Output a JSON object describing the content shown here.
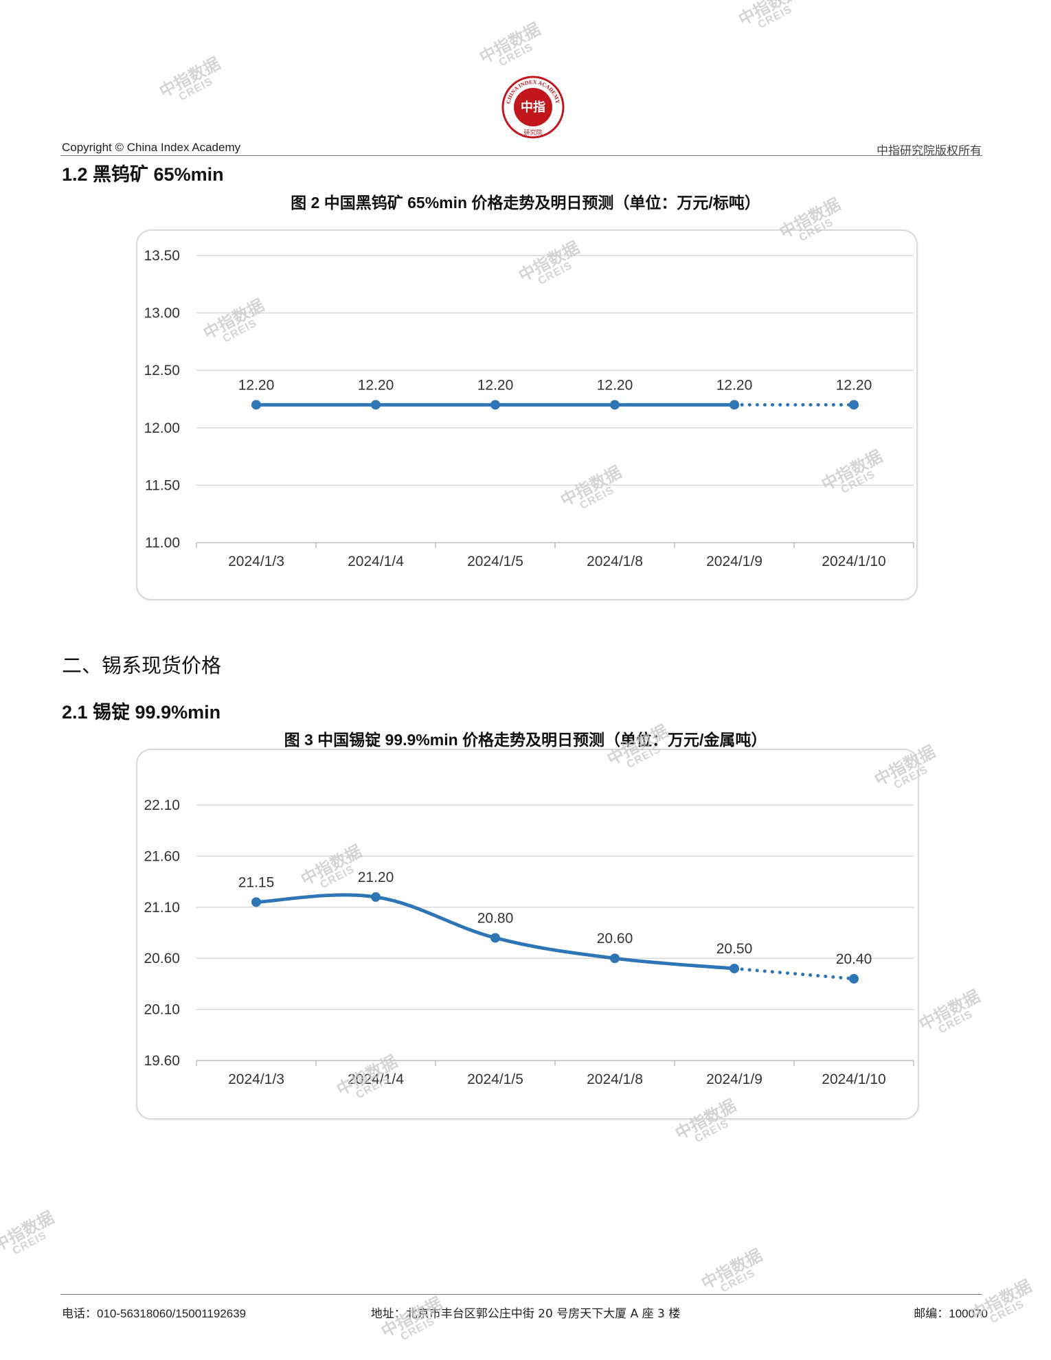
{
  "header": {
    "left": "Copyright © China Index Academy",
    "right": "中指研究院版权所有",
    "logo": {
      "top_text": "CHINA INDEX ACADEMY",
      "center_text": "中指",
      "bottom_text": "研究院",
      "color": "#c0161c"
    }
  },
  "section_1_2": {
    "title": "1.2 黑钨矿 65%min"
  },
  "section_2": {
    "title": "二、锡系现货价格"
  },
  "section_2_1": {
    "title": "2.1 锡锭 99.9%min"
  },
  "chart_data": [
    {
      "id": "fig2",
      "type": "line",
      "title": "图 2 中国黑钨矿 65%min 价格走势及明日预测（单位：万元/标吨）",
      "categories": [
        "2024/1/3",
        "2024/1/4",
        "2024/1/5",
        "2024/1/8",
        "2024/1/9",
        "2024/1/10"
      ],
      "values": [
        12.2,
        12.2,
        12.2,
        12.2,
        12.2,
        12.2
      ],
      "value_labels": [
        "12.20",
        "12.20",
        "12.20",
        "12.20",
        "12.20",
        "12.20"
      ],
      "forecast_from_index": 4,
      "ylim": [
        11.0,
        13.5
      ],
      "yticks": [
        "11.00",
        "11.50",
        "12.00",
        "12.50",
        "13.00",
        "13.50"
      ],
      "smooth": false,
      "grid": true,
      "color": "#2e75b6"
    },
    {
      "id": "fig3",
      "type": "line",
      "title": "图 3 中国锡锭 99.9%min 价格走势及明日预测（单位：万元/金属吨）",
      "categories": [
        "2024/1/3",
        "2024/1/4",
        "2024/1/5",
        "2024/1/8",
        "2024/1/9",
        "2024/1/10"
      ],
      "values": [
        21.15,
        21.2,
        20.8,
        20.6,
        20.5,
        20.4
      ],
      "value_labels": [
        "21.15",
        "21.20",
        "20.80",
        "20.60",
        "20.50",
        "20.40"
      ],
      "forecast_from_index": 4,
      "ylim": [
        19.6,
        22.1
      ],
      "yticks": [
        "19.60",
        "20.10",
        "20.60",
        "21.10",
        "21.60",
        "22.10"
      ],
      "smooth": true,
      "grid": true,
      "color": "#2e75b6"
    }
  ],
  "footer": {
    "phone": "电话：010-56318060/15001192639",
    "address": "地址：北京市丰台区郭公庄中街 20 号房天下大厦 A 座 3 楼",
    "postcode": "邮编：100070"
  },
  "watermark": {
    "cn": "中指数据",
    "en": "CREIS"
  }
}
